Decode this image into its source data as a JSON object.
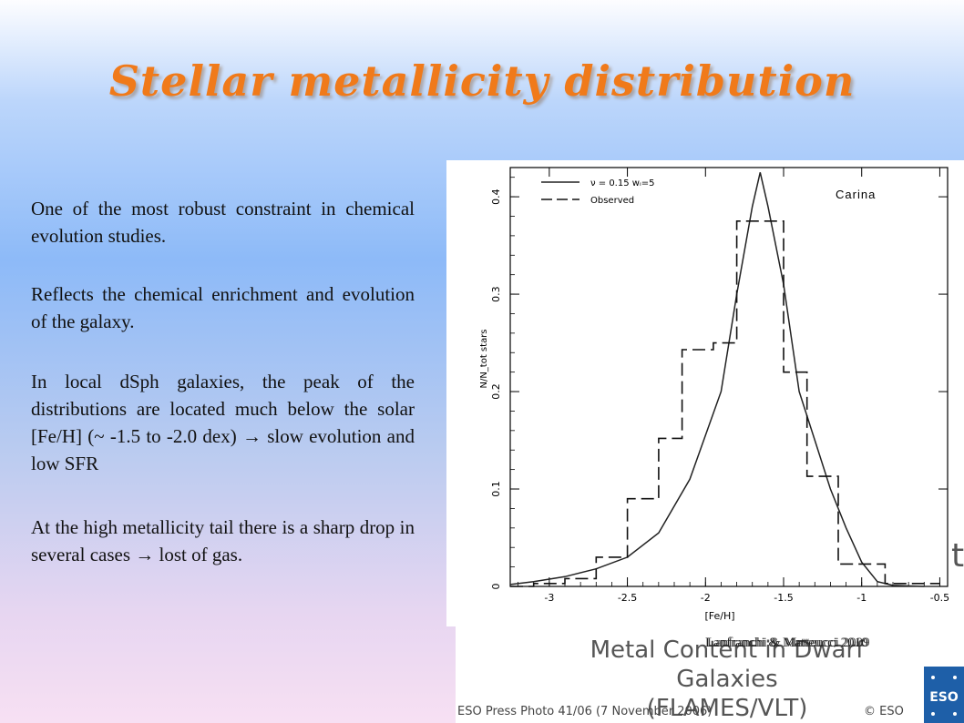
{
  "title": "Stellar metallicity distribution",
  "paragraphs": [
    "One of the most robust constraint in chemical evolution studies.",
    "Reflects the chemical enrichment and evolution of the galaxy.",
    "In local dSph galaxies, the peak of the distributions are located much below the solar [Fe/H] (~ -1.5 to -2.0 dex) → slow evolution and low SFR",
    "At the high metallicity tail there is a sharp drop in several cases → lost of gas."
  ],
  "citations": [
    "Lanfranchi & Matteucci 2010",
    "Lanfranchi & Matteucci 2009"
  ],
  "press": {
    "title_line1": "Metal Content in Dwarf Galaxies",
    "title_line2": "(FLAMES/VLT)",
    "caption": "ESO Press Photo 41/06 (7 November 2006)",
    "copyright": "© ESO",
    "logo_text": "ESO",
    "side_glyph": "t"
  },
  "chart_data": {
    "type": "line",
    "annotation": "Carina",
    "xlabel": "[Fe/H]",
    "ylabel": "N/N_tot stars",
    "xlim": [
      -3.25,
      -0.45
    ],
    "ylim": [
      0,
      0.43
    ],
    "xticks": [
      -3,
      -2.5,
      -2,
      -1.5,
      -1,
      -0.5
    ],
    "yticks": [
      0,
      0.1,
      0.2,
      0.3,
      0.4
    ],
    "tick_labels_x": [
      "-3",
      "-2.5",
      "-2",
      "-1.5",
      "-1",
      "-0.5"
    ],
    "tick_labels_y": [
      "0",
      "0.1",
      "0.2",
      "0.3",
      "0.4"
    ],
    "legend": {
      "placement": "top-left",
      "entries": [
        "ν = 0.15  wᵢ=5",
        "Observed"
      ]
    },
    "series": [
      {
        "name": "ν = 0.15  wᵢ=5",
        "style": "solid",
        "x": [
          -3.25,
          -3.1,
          -2.9,
          -2.7,
          -2.5,
          -2.3,
          -2.1,
          -1.9,
          -1.8,
          -1.7,
          -1.65,
          -1.6,
          -1.5,
          -1.4,
          -1.3,
          -1.2,
          -1.1,
          -1.0,
          -0.9,
          -0.8,
          -0.6
        ],
        "y": [
          0.002,
          0.005,
          0.01,
          0.018,
          0.03,
          0.055,
          0.11,
          0.2,
          0.3,
          0.39,
          0.425,
          0.39,
          0.31,
          0.2,
          0.15,
          0.1,
          0.06,
          0.025,
          0.005,
          0.001,
          0.0
        ]
      },
      {
        "name": "Observed",
        "style": "dashed-step",
        "edges": [
          -3.25,
          -3.1,
          -2.9,
          -2.7,
          -2.5,
          -2.3,
          -2.15,
          -1.95,
          -1.8,
          -1.65,
          -1.5,
          -1.35,
          -1.15,
          -1.0,
          -0.85,
          -0.7,
          -0.5
        ],
        "values": [
          0.0,
          0.003,
          0.008,
          0.03,
          0.09,
          0.152,
          0.243,
          0.25,
          0.375,
          0.375,
          0.22,
          0.113,
          0.023,
          0.023,
          0.003,
          0.003
        ]
      }
    ]
  }
}
